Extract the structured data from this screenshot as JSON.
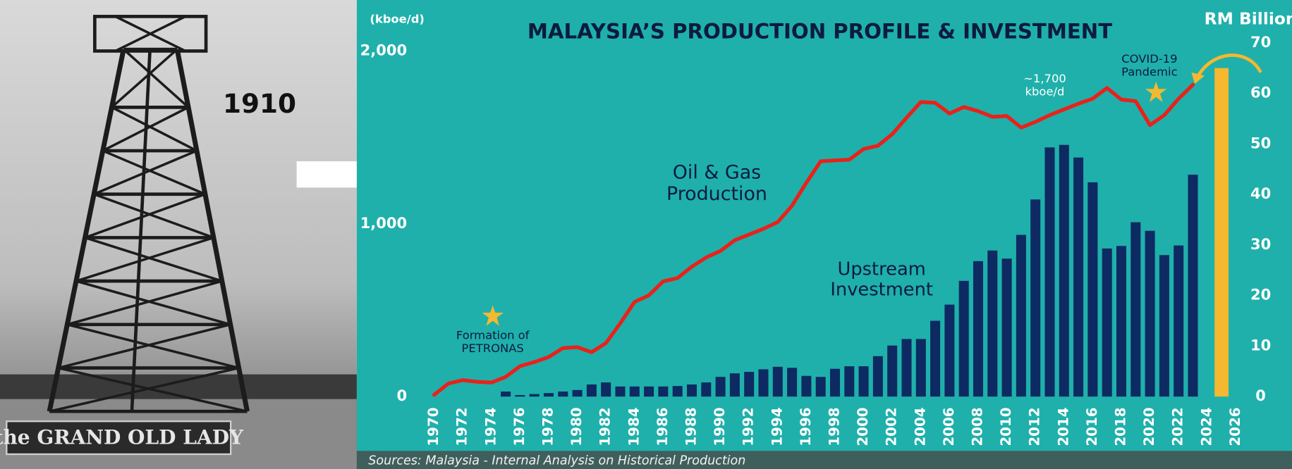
{
  "photo": {
    "year_label": "1910",
    "sign": "the GRAND OLD LADY"
  },
  "chart_data": {
    "type": "bar-line",
    "title": "MALAYSIA’S PRODUCTION PROFILE & INVESTMENT",
    "ylabel": "(kboe/d)",
    "y2label": "RM Billion",
    "source": "Sources: Malaysia - Internal Analysis on Historical Production",
    "xlim": [
      1965,
      2029
    ],
    "xticks": [
      1970,
      1972,
      1974,
      1976,
      1978,
      1980,
      1982,
      1984,
      1986,
      1988,
      1990,
      1992,
      1994,
      1996,
      1998,
      2000,
      2002,
      2004,
      2006,
      2008,
      2010,
      2012,
      2014,
      2016,
      2018,
      2020,
      2022,
      2024,
      2026
    ],
    "ylim": [
      0,
      2000
    ],
    "yticks": [
      0,
      {
        "value": 1000,
        "label": "1,000"
      },
      {
        "value": 2000,
        "label": "2,000"
      }
    ],
    "y2lim": [
      0,
      70
    ],
    "y2ticks": [
      0,
      10,
      20,
      30,
      40,
      50,
      60,
      70
    ],
    "grid": false,
    "series": [
      {
        "name": "Upstream Investment",
        "type": "bar",
        "axis": "y2",
        "color": "#0e2a62",
        "x": [
          1975,
          1976,
          1977,
          1978,
          1979,
          1980,
          1981,
          1982,
          1983,
          1984,
          1985,
          1986,
          1987,
          1988,
          1989,
          1990,
          1991,
          1992,
          1993,
          1994,
          1995,
          1996,
          1997,
          1998,
          1999,
          2000,
          2001,
          2002,
          2003,
          2004,
          2005,
          2006,
          2007,
          2008,
          2009,
          2010,
          2011,
          2012,
          2013,
          2014,
          2015,
          2016,
          2017,
          2018,
          2019,
          2020,
          2021,
          2022,
          2023
        ],
        "values": [
          1,
          0.3,
          0.5,
          0.7,
          1,
          1.3,
          2.4,
          2.8,
          2,
          2,
          2,
          2,
          2.1,
          2.4,
          2.8,
          3.9,
          4.6,
          4.9,
          5.4,
          5.9,
          5.7,
          4.1,
          3.9,
          5.5,
          6,
          6,
          8,
          10.1,
          11.4,
          11.4,
          15,
          18.2,
          22.9,
          26.8,
          28.9,
          27.3,
          32,
          39,
          49.3,
          49.8,
          47.3,
          42.4,
          29.3,
          29.8,
          34.5,
          32.8,
          28,
          29.9,
          43.9
        ]
      },
      {
        "type": "bar",
        "axis": "y2",
        "color": "#f5b82e",
        "x": [
          2025
        ],
        "values": [
          65
        ]
      },
      {
        "name": "Oil & Gas Production",
        "type": "line",
        "color": "#e8221b",
        "x": [
          1970,
          1971,
          1972,
          1973,
          1974,
          1975,
          1976,
          1977,
          1978,
          1979,
          1980,
          1981,
          1982,
          1983,
          1984,
          1985,
          1986,
          1987,
          1988,
          1989,
          1990,
          1991,
          1992,
          1993,
          1994,
          1995,
          1996,
          1997,
          1998,
          1999,
          2000,
          2001,
          2002,
          2003,
          2004,
          2005,
          2006,
          2007,
          2008,
          2009,
          2010,
          2011,
          2012,
          2013,
          2014,
          2015,
          2016,
          2017,
          2018,
          2019,
          2020,
          2021,
          2022,
          2023
        ],
        "values": [
          10,
          76,
          95,
          86,
          81,
          114,
          176,
          200,
          229,
          281,
          286,
          257,
          310,
          424,
          548,
          586,
          667,
          686,
          752,
          805,
          843,
          905,
          938,
          971,
          1010,
          1105,
          1238,
          1362,
          1367,
          1371,
          1433,
          1452,
          1519,
          1614,
          1705,
          1700,
          1638,
          1676,
          1652,
          1619,
          1624,
          1557,
          1590,
          1629,
          1662,
          1695,
          1724,
          1786,
          1719,
          1710,
          1571,
          1629,
          1724,
          1805
        ]
      }
    ],
    "annotations": [
      "~1,700 kboe/d",
      "COVID-19 Pandemic",
      "Formation of PETRONAS"
    ]
  }
}
